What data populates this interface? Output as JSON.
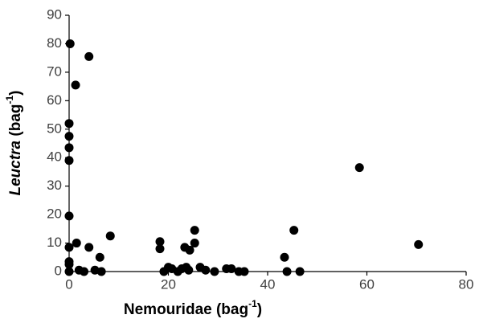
{
  "chart_data": {
    "type": "scatter",
    "xlabel_parts": [
      "Nemouridae (bag",
      "-1",
      ")"
    ],
    "ylabel_parts": [
      "Leuctra",
      " (bag",
      "-1",
      ")"
    ],
    "color": "#000000",
    "series": [
      {
        "x": [
          0.2,
          4,
          1.3,
          0,
          0,
          0,
          0,
          0,
          0,
          0,
          0,
          0,
          1.5,
          2,
          3,
          4,
          5.2,
          6.2,
          6.5,
          8.3,
          18.3,
          18.3,
          19.1,
          20,
          20.7,
          21.9,
          22.7,
          23.3,
          23.6,
          24.1,
          24.3,
          25.3,
          25.3,
          26.4,
          27.5,
          29.3,
          31.7,
          32.7,
          34.2,
          35.3,
          43.9,
          43.4,
          45.3,
          46.5,
          58.5,
          70.4
        ],
        "values": [
          80,
          75.5,
          65.5,
          52,
          47.5,
          43.5,
          39,
          19.5,
          8.5,
          3.5,
          2.5,
          0,
          10,
          0.5,
          0,
          8.5,
          0.5,
          5,
          0,
          12.5,
          10.5,
          8,
          0,
          1.5,
          1,
          0,
          1,
          8.5,
          1.5,
          0.5,
          7.5,
          14.5,
          10,
          1.5,
          0.5,
          0,
          1,
          1,
          0,
          0,
          0,
          5,
          14.5,
          0,
          36.5,
          9.5
        ]
      }
    ],
    "xlim": [
      0,
      80
    ],
    "xticks": [
      0,
      20,
      40,
      60,
      80
    ],
    "ylim": [
      0,
      90
    ],
    "yticks": [
      0,
      10,
      20,
      30,
      40,
      50,
      60,
      70,
      80,
      90
    ]
  }
}
